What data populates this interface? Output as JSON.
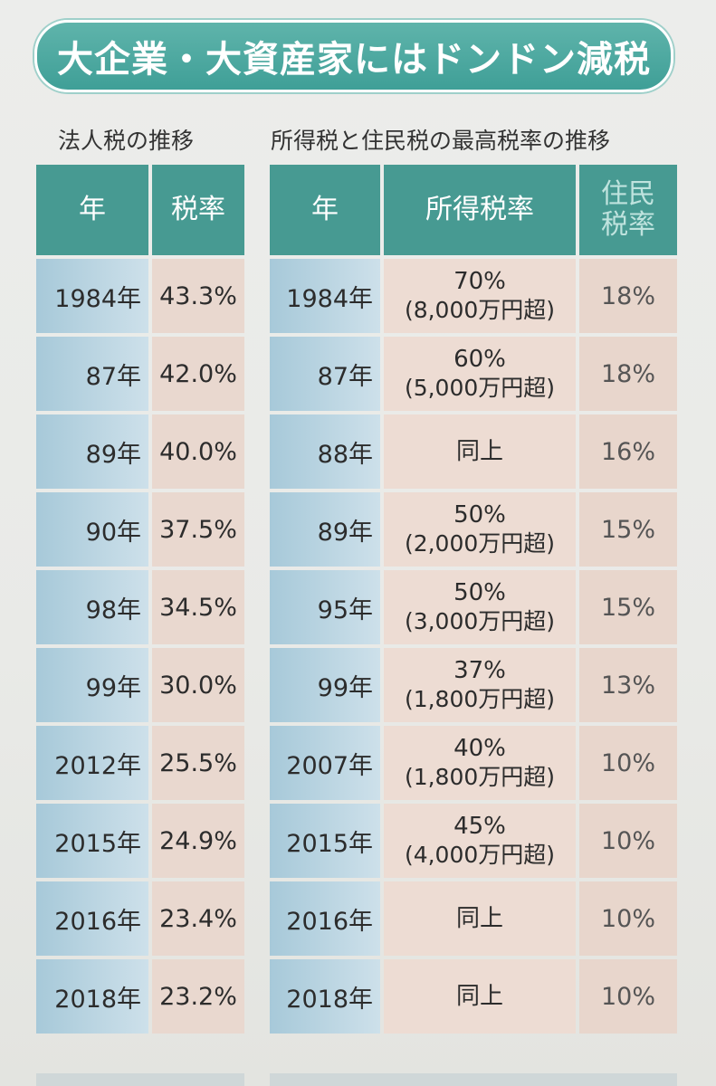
{
  "banner": {
    "title": "大企業・大資産家にはドンドン減税"
  },
  "corporate": {
    "title": "法人税の推移",
    "headers": {
      "year": "年",
      "rate": "税率"
    },
    "rows": [
      {
        "year": "1984年",
        "rate": "43.3%"
      },
      {
        "year": "87年",
        "rate": "42.0%"
      },
      {
        "year": "89年",
        "rate": "40.0%"
      },
      {
        "year": "90年",
        "rate": "37.5%"
      },
      {
        "year": "98年",
        "rate": "34.5%"
      },
      {
        "year": "99年",
        "rate": "30.0%"
      },
      {
        "year": "2012年",
        "rate": "25.5%"
      },
      {
        "year": "2015年",
        "rate": "24.9%"
      },
      {
        "year": "2016年",
        "rate": "23.4%"
      },
      {
        "year": "2018年",
        "rate": "23.2%"
      }
    ]
  },
  "income": {
    "title": "所得税と住民税の最高税率の推移",
    "headers": {
      "year": "年",
      "income_rate": "所得税率",
      "resident_rate_l1": "住民",
      "resident_rate_l2": "税率"
    },
    "rows": [
      {
        "year": "1984年",
        "income_rate": "70%",
        "threshold": "(8,000万円超)",
        "resident_rate": "18%"
      },
      {
        "year": "87年",
        "income_rate": "60%",
        "threshold": "(5,000万円超)",
        "resident_rate": "18%"
      },
      {
        "year": "88年",
        "income_rate": "同上",
        "threshold": "",
        "resident_rate": "16%"
      },
      {
        "year": "89年",
        "income_rate": "50%",
        "threshold": "(2,000万円超)",
        "resident_rate": "15%"
      },
      {
        "year": "95年",
        "income_rate": "50%",
        "threshold": "(3,000万円超)",
        "resident_rate": "15%"
      },
      {
        "year": "99年",
        "income_rate": "37%",
        "threshold": "(1,800万円超)",
        "resident_rate": "13%"
      },
      {
        "year": "2007年",
        "income_rate": "40%",
        "threshold": "(1,800万円超)",
        "resident_rate": "10%"
      },
      {
        "year": "2015年",
        "income_rate": "45%",
        "threshold": "(4,000万円超)",
        "resident_rate": "10%"
      },
      {
        "year": "2016年",
        "income_rate": "同上",
        "threshold": "",
        "resident_rate": "10%"
      },
      {
        "year": "2018年",
        "income_rate": "同上",
        "threshold": "",
        "resident_rate": "10%"
      }
    ]
  }
}
